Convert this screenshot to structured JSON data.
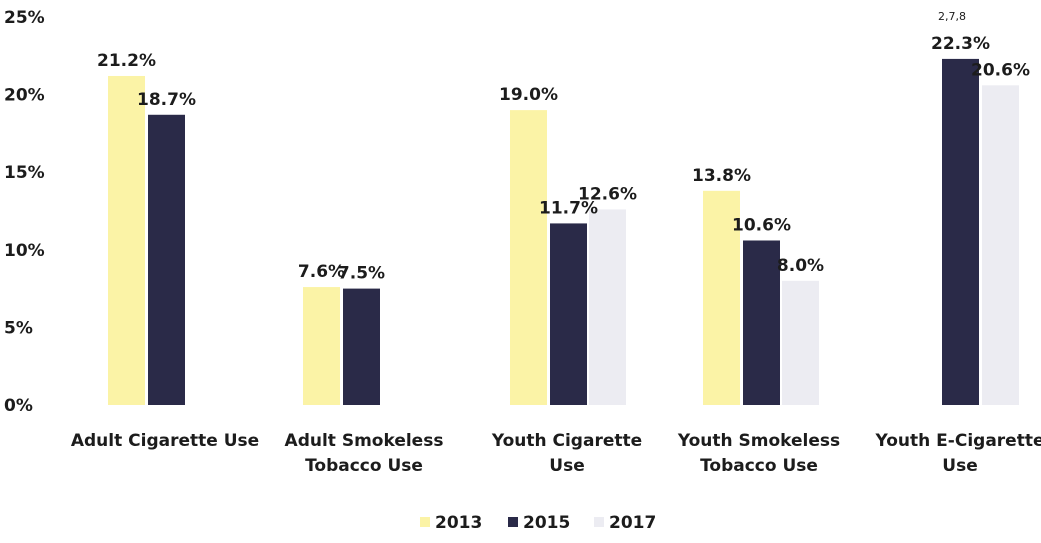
{
  "chart_data": {
    "type": "bar",
    "title": "",
    "footnote": "2,7,8",
    "xlabel": "",
    "ylabel": "",
    "ylim": [
      0,
      25
    ],
    "yticks": [
      "0%",
      "5%",
      "10%",
      "15%",
      "20%",
      "25%"
    ],
    "grid": false,
    "legend_position": "bottom",
    "categories": [
      [
        "Adult Cigarette Use"
      ],
      [
        "Adult Smokeless",
        "Tobacco Use"
      ],
      [
        "Youth Cigarette",
        "Use"
      ],
      [
        "Youth Smokeless",
        "Tobacco Use"
      ],
      [
        "Youth E-Cigarette",
        "Use"
      ]
    ],
    "series": [
      {
        "name": "2013",
        "color": "#fbf3a6",
        "values": [
          21.2,
          7.6,
          19.0,
          13.8,
          null
        ],
        "labels": [
          "21.2%",
          "7.6%",
          "19.0%",
          "13.8%",
          null
        ]
      },
      {
        "name": "2015",
        "color": "#2a2a48",
        "values": [
          18.7,
          7.5,
          11.7,
          10.6,
          22.3
        ],
        "labels": [
          "18.7%",
          "7.5%",
          "11.7%",
          "10.6%",
          "22.3%"
        ]
      },
      {
        "name": "2017",
        "color": "#ececf2",
        "values": [
          null,
          null,
          12.6,
          8.0,
          20.6
        ],
        "labels": [
          null,
          null,
          "12.6%",
          "8.0%",
          "20.6%"
        ]
      }
    ]
  }
}
